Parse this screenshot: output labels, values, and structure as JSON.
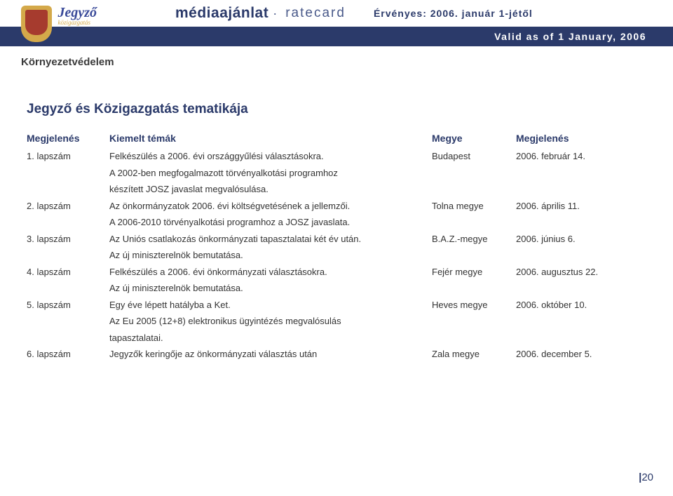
{
  "header": {
    "title_main": "médiaajánlat",
    "title_sub": "ratecard",
    "valid_hu": "Érvényes: 2006. január 1-jétől",
    "valid_en": "Valid as of 1 January, 2006",
    "logo_jegyzo_top": "Jegyző",
    "logo_jegyzo_bottom": "közigazgatás",
    "logo_kv": "Környezetvédelem"
  },
  "section_title": "Jegyző és Közigazgatás tematikája",
  "columns": {
    "issue": "Megjelenés",
    "topic": "Kiemelt témák",
    "county": "Megye",
    "date": "Megjelenés"
  },
  "rows": [
    {
      "issue": "1. lapszám",
      "topic_lines": [
        "Felkészülés a 2006. évi országgyűlési választásokra.",
        "A 2002-ben megfogalmazott törvényalkotási programhoz",
        "készített JOSZ javaslat megvalósulása."
      ],
      "county": "Budapest",
      "date": "2006. február 14."
    },
    {
      "issue": "2. lapszám",
      "topic_lines": [
        "Az önkormányzatok 2006. évi költségvetésének a jellemzői.",
        "A 2006-2010 törvényalkotási programhoz a JOSZ javaslata."
      ],
      "county": "Tolna megye",
      "date": "2006. április 11."
    },
    {
      "issue": "3. lapszám",
      "topic_lines": [
        "Az Uniós csatlakozás önkormányzati tapasztalatai két év után.",
        "Az új miniszterelnök bemutatása."
      ],
      "county": "B.A.Z.-megye",
      "date": "2006. június 6."
    },
    {
      "issue": "4. lapszám",
      "topic_lines": [
        "Felkészülés a 2006. évi önkormányzati választásokra.",
        "Az új miniszterelnök bemutatása."
      ],
      "county": "Fejér megye",
      "date": "2006. augusztus 22."
    },
    {
      "issue": "5. lapszám",
      "topic_lines": [
        "Egy éve lépett hatályba a Ket.",
        "Az Eu 2005 (12+8) elektronikus ügyintézés megvalósulás",
        "tapasztalatai."
      ],
      "county": "Heves megye",
      "date": "2006. október 10."
    },
    {
      "issue": "6. lapszám",
      "topic_lines": [
        "Jegyzők keringője az önkormányzati választás után"
      ],
      "county": "Zala megye",
      "date": "2006. december 5."
    }
  ],
  "page_number": "20",
  "colors": {
    "brand_navy": "#2b3a6a",
    "background": "#ffffff",
    "text": "#333333",
    "gold": "#d4a94a",
    "rust": "#a63b2e"
  }
}
